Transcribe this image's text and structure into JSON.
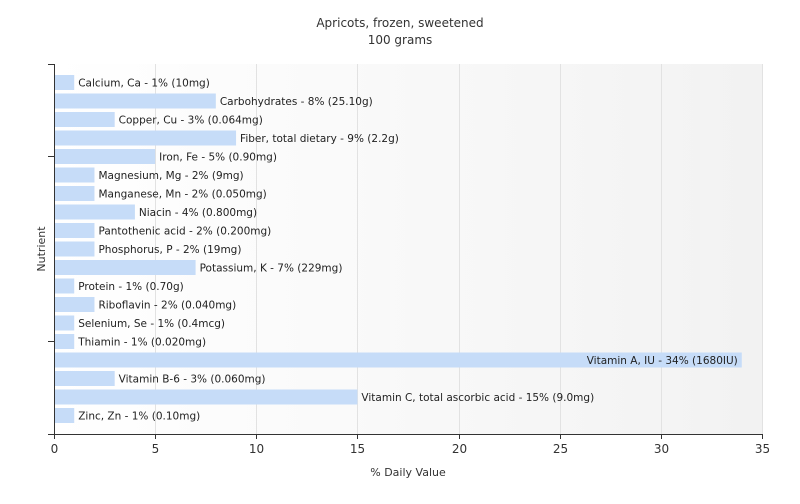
{
  "chart_data": {
    "type": "bar",
    "orientation": "horizontal",
    "title": "Apricots, frozen, sweetened",
    "subtitle": "100 grams",
    "xlabel": "% Daily Value",
    "ylabel": "Nutrient",
    "xlim": [
      0,
      35
    ],
    "xticks": [
      0,
      5,
      10,
      15,
      20,
      25,
      30,
      35
    ],
    "grid": true,
    "bar_color": "#c6dcf8",
    "categories": [
      "Calcium, Ca",
      "Carbohydrates",
      "Copper, Cu",
      "Fiber, total dietary",
      "Iron, Fe",
      "Magnesium, Mg",
      "Manganese, Mn",
      "Niacin",
      "Pantothenic acid",
      "Phosphorus, P",
      "Potassium, K",
      "Protein",
      "Riboflavin",
      "Selenium, Se",
      "Thiamin",
      "Vitamin A, IU",
      "Vitamin B-6",
      "Vitamin C, total ascorbic acid",
      "Zinc, Zn"
    ],
    "values": [
      1,
      8,
      3,
      9,
      5,
      2,
      2,
      4,
      2,
      2,
      7,
      1,
      2,
      1,
      1,
      34,
      3,
      15,
      1
    ],
    "labels": [
      "Calcium, Ca - 1% (10mg)",
      "Carbohydrates - 8% (25.10g)",
      "Copper, Cu - 3% (0.064mg)",
      "Fiber, total dietary - 9% (2.2g)",
      "Iron, Fe - 5% (0.90mg)",
      "Magnesium, Mg - 2% (9mg)",
      "Manganese, Mn - 2% (0.050mg)",
      "Niacin - 4% (0.800mg)",
      "Pantothenic acid - 2% (0.200mg)",
      "Phosphorus, P - 2% (19mg)",
      "Potassium, K - 7% (229mg)",
      "Protein - 1% (0.70g)",
      "Riboflavin - 2% (0.040mg)",
      "Selenium, Se - 1% (0.4mcg)",
      "Thiamin - 1% (0.020mg)",
      "Vitamin A, IU - 34% (1680IU)",
      "Vitamin B-6 - 3% (0.060mg)",
      "Vitamin C, total ascorbic acid - 15% (9.0mg)",
      "Zinc, Zn - 1% (0.10mg)"
    ]
  }
}
